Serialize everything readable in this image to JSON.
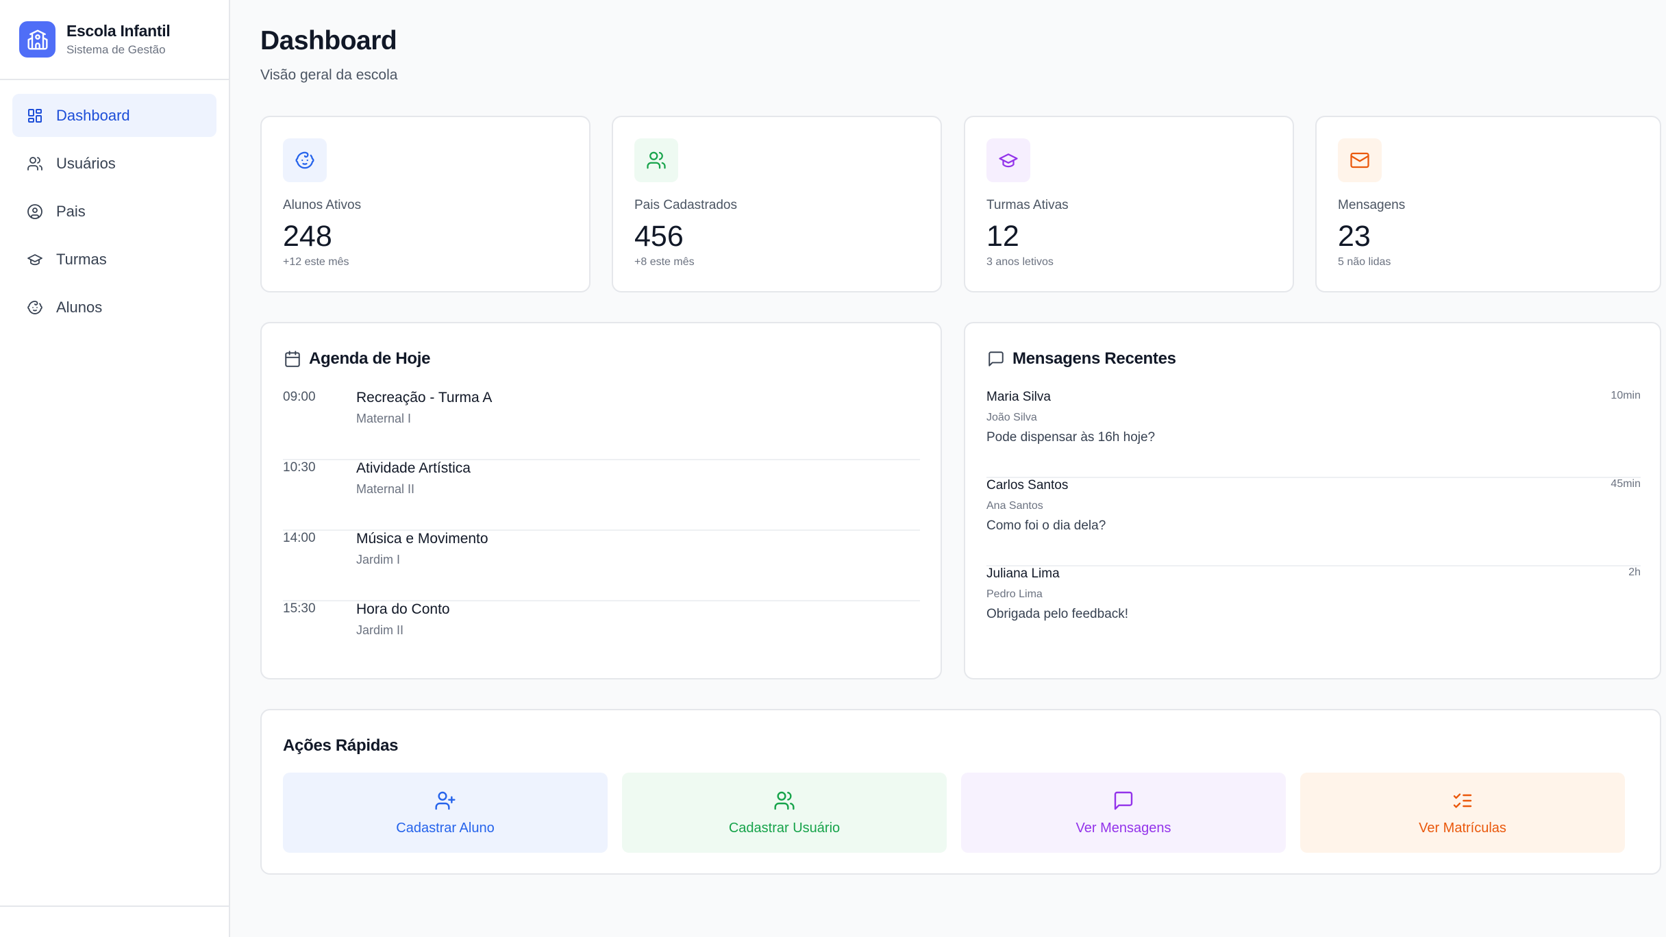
{
  "brand": {
    "title": "Escola Infantil",
    "subtitle": "Sistema de Gestão",
    "icon": "school-icon"
  },
  "nav": [
    {
      "label": "Dashboard",
      "icon": "dashboard-grid-icon",
      "active": true
    },
    {
      "label": "Usuários",
      "icon": "users-icon"
    },
    {
      "label": "Pais",
      "icon": "user-circle-icon"
    },
    {
      "label": "Turmas",
      "icon": "graduation-cap-icon"
    },
    {
      "label": "Alunos",
      "icon": "baby-face-icon"
    }
  ],
  "header": {
    "title": "Dashboard",
    "subtitle": "Visão geral da escola"
  },
  "stats": [
    {
      "label": "Alunos Ativos",
      "value": "248",
      "note": "+12 este mês",
      "icon": "baby-face-icon",
      "color": "#2563eb",
      "bg": "#eef3fe"
    },
    {
      "label": "Pais Cadastrados",
      "value": "456",
      "note": "+8 este mês",
      "icon": "users-icon",
      "color": "#16a34a",
      "bg": "#eefaf2"
    },
    {
      "label": "Turmas Ativas",
      "value": "12",
      "note": "3 anos letivos",
      "icon": "graduation-cap-icon",
      "color": "#9333ea",
      "bg": "#f6effe"
    },
    {
      "label": "Mensagens",
      "value": "23",
      "note": "5 não lidas",
      "icon": "mail-icon",
      "color": "#ea580c",
      "bg": "#fff4ea"
    }
  ],
  "agenda": {
    "title": "Agenda de Hoje",
    "items": [
      {
        "time": "09:00",
        "activity": "Recreação - Turma A",
        "class": "Maternal I"
      },
      {
        "time": "10:30",
        "activity": "Atividade Artística",
        "class": "Maternal II"
      },
      {
        "time": "14:00",
        "activity": "Música e Movimento",
        "class": "Jardim I"
      },
      {
        "time": "15:30",
        "activity": "Hora do Conto",
        "class": "Jardim II"
      }
    ]
  },
  "messages": {
    "title": "Mensagens Recentes",
    "items": [
      {
        "sender": "Maria Silva",
        "child": "João Silva",
        "text": "Pode dispensar às 16h hoje?",
        "time": "10min"
      },
      {
        "sender": "Carlos Santos",
        "child": "Ana Santos",
        "text": "Como foi o dia dela?",
        "time": "45min"
      },
      {
        "sender": "Juliana Lima",
        "child": "Pedro Lima",
        "text": "Obrigada pelo feedback!",
        "time": "2h"
      }
    ]
  },
  "quick_actions": {
    "title": "Ações Rápidas",
    "items": [
      {
        "label": "Cadastrar Aluno",
        "icon": "user-plus-icon",
        "color": "#2563eb",
        "bg": "#eef3fe"
      },
      {
        "label": "Cadastrar Usuário",
        "icon": "users-icon",
        "color": "#16a34a",
        "bg": "#effaf2"
      },
      {
        "label": "Ver Mensagens",
        "icon": "message-square-icon",
        "color": "#9333ea",
        "bg": "#f7f2fe"
      },
      {
        "label": "Ver Matrículas",
        "icon": "list-checks-icon",
        "color": "#ea580c",
        "bg": "#fff4ea"
      }
    ]
  }
}
